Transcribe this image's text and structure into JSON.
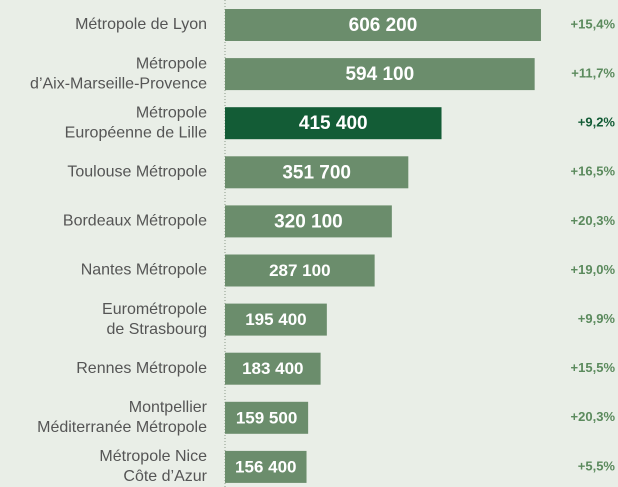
{
  "chart_data": {
    "type": "bar",
    "orientation": "horizontal",
    "categories": [
      [
        "Métropole de Lyon"
      ],
      [
        "Métropole",
        "d’Aix-Marseille-Provence"
      ],
      [
        "Métropole",
        "Européenne de Lille"
      ],
      [
        "Toulouse Métropole"
      ],
      [
        "Bordeaux Métropole"
      ],
      [
        "Nantes Métropole"
      ],
      [
        "Eurométropole",
        "de Strasbourg"
      ],
      [
        "Rennes Métropole"
      ],
      [
        "Montpellier",
        "Méditerranée Métropole"
      ],
      [
        "Métropole Nice",
        "Côte d’Azur"
      ]
    ],
    "values": [
      606200,
      594100,
      415400,
      351700,
      320100,
      287100,
      195400,
      183400,
      159500,
      156400
    ],
    "value_labels": [
      "606 200",
      "594 100",
      "415 400",
      "351 700",
      "320 100",
      "287 100",
      "195 400",
      "183 400",
      "159 500",
      "156 400"
    ],
    "change_labels": [
      "+15,4%",
      "+11,7%",
      "+9,2%",
      "+16,5%",
      "+20,3%",
      "+19,0%",
      "+9,9%",
      "+15,5%",
      "+20,3%",
      "+5,5%"
    ],
    "colors": [
      "#6b8d6c",
      "#6b8d6c",
      "#135c36",
      "#6b8d6c",
      "#6b8d6c",
      "#6b8d6c",
      "#6b8d6c",
      "#6b8d6c",
      "#6b8d6c",
      "#6b8d6c"
    ],
    "change_colors": [
      "#5b8a5d",
      "#5b8a5d",
      "#135c36",
      "#5b8a5d",
      "#5b8a5d",
      "#5b8a5d",
      "#5b8a5d",
      "#5b8a5d",
      "#5b8a5d",
      "#5b8a5d"
    ],
    "xlim": [
      0,
      754000
    ]
  }
}
